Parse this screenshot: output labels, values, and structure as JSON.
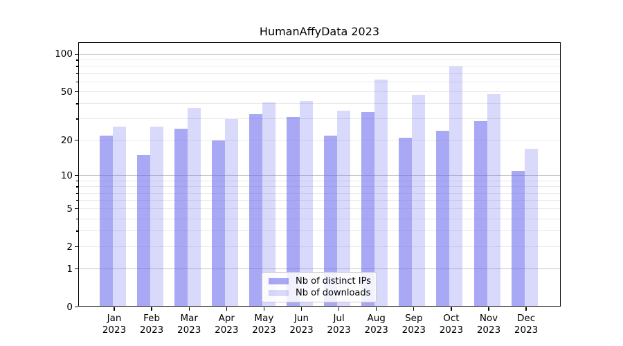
{
  "figure": {
    "title": "HumanAffyData 2023"
  },
  "chart_data": {
    "type": "bar",
    "title": "HumanAffyData 2023",
    "categories": [
      "Jan",
      "Feb",
      "Mar",
      "Apr",
      "May",
      "Jun",
      "Jul",
      "Aug",
      "Sep",
      "Oct",
      "Nov",
      "Dec"
    ],
    "year_label": "2023",
    "series": [
      {
        "name": "Nb of distinct IPs",
        "color": "rgba(102,102,238,0.57)",
        "values": [
          22,
          15,
          25,
          20,
          33,
          31,
          22,
          34,
          21,
          24,
          29,
          11
        ]
      },
      {
        "name": "Nb of downloads",
        "color": "rgba(102,102,238,0.25)",
        "values": [
          26,
          26,
          37,
          30,
          41,
          42,
          35,
          63,
          47,
          80,
          48,
          17
        ]
      }
    ],
    "xlabel": "",
    "ylabel": "",
    "yscale": "pseudo-log (position ~ log10(1+y))",
    "ylim": [
      0,
      125
    ],
    "y_major_ticks": [
      0,
      1,
      2,
      5,
      10,
      20,
      50,
      100
    ],
    "y_tick_labels": [
      "0",
      "1",
      "2",
      "5",
      "10",
      "20",
      "50",
      "100"
    ],
    "y_minor_gridlines": [
      3,
      4,
      6,
      7,
      8,
      9,
      30,
      40,
      60,
      70,
      80,
      90
    ],
    "grid": true,
    "gridline_color_major_power10": "#c3c3c3",
    "gridline_color_minor": "#e9e9e9",
    "legend": {
      "position": "lower center",
      "entries": [
        "Nb of distinct IPs",
        "Nb of downloads"
      ]
    }
  }
}
